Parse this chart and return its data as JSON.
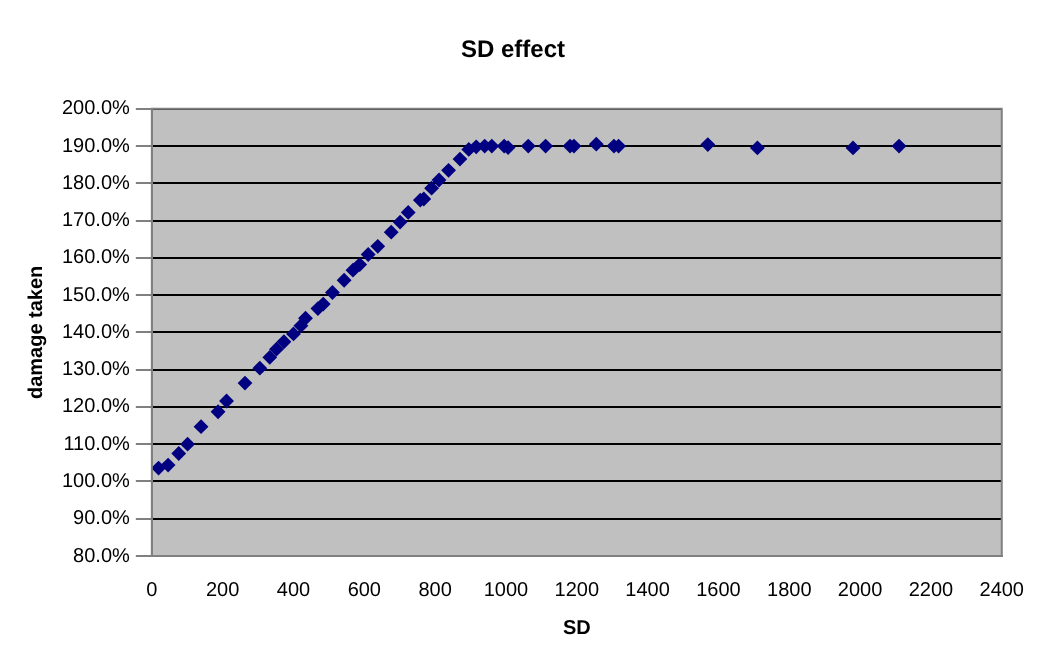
{
  "chart_data": {
    "type": "scatter",
    "title": "SD effect",
    "xlabel": "SD",
    "ylabel": "damage taken",
    "x": [
      19,
      46,
      76,
      101,
      139,
      187,
      211,
      263,
      305,
      333,
      352,
      373,
      400,
      421,
      434,
      469,
      484,
      510,
      543,
      568,
      587,
      611,
      638,
      676,
      701,
      724,
      758,
      768,
      790,
      811,
      838,
      870,
      895,
      916,
      940,
      960,
      995,
      1006,
      1063,
      1112,
      1181,
      1192,
      1255,
      1305,
      1318,
      1570,
      1710,
      1980,
      2110
    ],
    "series": [
      {
        "color": "#000080",
        "values": [
          103.6,
          104.4,
          107.5,
          110,
          114.7,
          118.7,
          121.6,
          126.4,
          130.4,
          133.3,
          135.5,
          137.5,
          139.6,
          141.8,
          143.8,
          146.4,
          147.6,
          150.7,
          154,
          156.7,
          158.2,
          160.9,
          163.1,
          166.9,
          169.6,
          172.2,
          175.5,
          175.8,
          178.7,
          180.9,
          183.5,
          186.5,
          189.1,
          189.8,
          190,
          190,
          190,
          189.6,
          190,
          190,
          190,
          190,
          190.5,
          190,
          190,
          190.4,
          189.5,
          189.5,
          190
        ]
      }
    ],
    "xlim": [
      0,
      2400
    ],
    "xticks": [
      0,
      200,
      400,
      600,
      800,
      1000,
      1200,
      1400,
      1600,
      1800,
      2000,
      2200,
      2400
    ],
    "ylim": [
      80,
      200
    ],
    "yticks": [
      {
        "value": 80,
        "label": "80.0%"
      },
      {
        "value": 90,
        "label": "90.0%"
      },
      {
        "value": 100,
        "label": "100.0%"
      },
      {
        "value": 110,
        "label": "110.0%"
      },
      {
        "value": 120,
        "label": "120.0%"
      },
      {
        "value": 130,
        "label": "130.0%"
      },
      {
        "value": 140,
        "label": "140.0%"
      },
      {
        "value": 150,
        "label": "150.0%"
      },
      {
        "value": 160,
        "label": "160.0%"
      },
      {
        "value": 170,
        "label": "170.0%"
      },
      {
        "value": 180,
        "label": "180.0%"
      },
      {
        "value": 190,
        "label": "190.0%"
      },
      {
        "value": 200,
        "label": "200.0%"
      }
    ],
    "grid": "y",
    "legend": false,
    "marker": "diamond"
  }
}
